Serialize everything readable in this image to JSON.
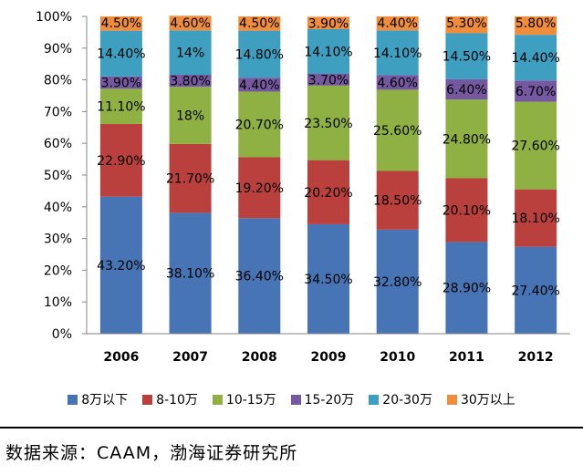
{
  "chart_data": {
    "type": "bar",
    "stacked": true,
    "categories": [
      "2006",
      "2007",
      "2008",
      "2009",
      "2010",
      "2011",
      "2012"
    ],
    "series": [
      {
        "name": "8万以下",
        "color": "#4674b4",
        "values": [
          43.2,
          38.1,
          36.4,
          34.5,
          32.8,
          28.9,
          27.4
        ],
        "labels": [
          "43.20%",
          "38.10%",
          "36.40%",
          "34.50%",
          "32.80%",
          "28.90%",
          "27.40%"
        ]
      },
      {
        "name": "8-10万",
        "color": "#b9403c",
        "values": [
          22.9,
          21.7,
          19.2,
          20.2,
          18.5,
          20.1,
          18.1
        ],
        "labels": [
          "22.90%",
          "21.70%",
          "19.20%",
          "20.20%",
          "18.50%",
          "20.10%",
          "18.10%"
        ]
      },
      {
        "name": "10-15万",
        "color": "#8fb144",
        "values": [
          11.1,
          18.0,
          20.7,
          23.5,
          25.6,
          24.8,
          27.6
        ],
        "labels": [
          "11.10%",
          "18%",
          "20.70%",
          "23.50%",
          "25.60%",
          "24.80%",
          "27.60%"
        ]
      },
      {
        "name": "15-20万",
        "color": "#7558a0",
        "values": [
          3.9,
          3.8,
          4.4,
          3.7,
          4.6,
          6.4,
          6.7
        ],
        "labels": [
          "3.90%",
          "3.80%",
          "4.40%",
          "3.70%",
          "4.60%",
          "6.40%",
          "6.70%"
        ]
      },
      {
        "name": "20-30万",
        "color": "#3e9fc0",
        "values": [
          14.4,
          14.0,
          14.8,
          14.1,
          14.1,
          14.5,
          14.4
        ],
        "labels": [
          "14.40%",
          "14%",
          "14.80%",
          "14.10%",
          "14.10%",
          "14.50%",
          "14.40%"
        ]
      },
      {
        "name": "30万以上",
        "color": "#f08d3c",
        "values": [
          4.5,
          4.6,
          4.5,
          3.9,
          4.4,
          5.3,
          5.8
        ],
        "labels": [
          "4.50%",
          "4.60%",
          "4.50%",
          "3.90%",
          "4.40%",
          "5.30%",
          "5.80%"
        ]
      }
    ],
    "yticks": [
      "0%",
      "10%",
      "20%",
      "30%",
      "40%",
      "50%",
      "60%",
      "70%",
      "80%",
      "90%",
      "100%"
    ],
    "ylim": [
      0,
      100
    ],
    "grid": false,
    "legend": "bottom",
    "title": "",
    "xlabel": "",
    "ylabel": ""
  },
  "source": "数据来源：CAAM，渤海证券研究所"
}
